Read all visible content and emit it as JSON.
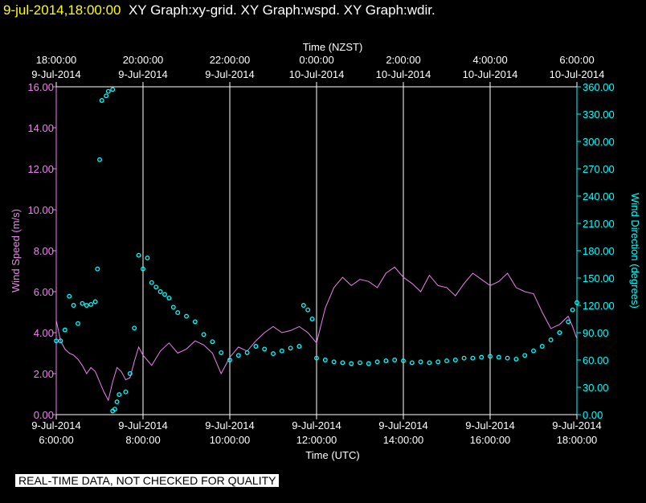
{
  "header": {
    "timestamp": "9-jul-2014,18:00:00",
    "graph_titles": "XY Graph:xy-grid.  XY Graph:wspd.  XY Graph:wdir."
  },
  "footer": {
    "qc_note": "REAL-TIME DATA, NOT CHECKED FOR QUALITY"
  },
  "colors": {
    "speed": "#ee82ee",
    "direction": "#00ffff",
    "grid": "#ffffff",
    "background": "#000000",
    "timestamp": "#ffff00"
  },
  "chart_data": {
    "type": "line",
    "top_axis": {
      "label": "Time (NZST)",
      "ticks": [
        {
          "time": "18:00:00",
          "date": "9-Jul-2014"
        },
        {
          "time": "20:00:00",
          "date": "9-Jul-2014"
        },
        {
          "time": "22:00:00",
          "date": "9-Jul-2014"
        },
        {
          "time": "0:00:00",
          "date": "10-Jul-2014"
        },
        {
          "time": "2:00:00",
          "date": "10-Jul-2014"
        },
        {
          "time": "4:00:00",
          "date": "10-Jul-2014"
        },
        {
          "time": "6:00:00",
          "date": "10-Jul-2014"
        }
      ]
    },
    "bottom_axis": {
      "label": "Time (UTC)",
      "range_hours_utc": [
        6,
        18
      ],
      "ticks": [
        {
          "date": "9-Jul-2014",
          "time": "6:00:00"
        },
        {
          "date": "9-Jul-2014",
          "time": "8:00:00"
        },
        {
          "date": "9-Jul-2014",
          "time": "10:00:00"
        },
        {
          "date": "9-Jul-2014",
          "time": "12:00:00"
        },
        {
          "date": "9-Jul-2014",
          "time": "14:00:00"
        },
        {
          "date": "9-Jul-2014",
          "time": "16:00:00"
        },
        {
          "date": "9-Jul-2014",
          "time": "18:00:00"
        }
      ]
    },
    "left_axis": {
      "label": "Wind Speed (m/s)",
      "range": [
        0,
        16
      ],
      "ticks": [
        "0.00",
        "2.00",
        "4.00",
        "6.00",
        "8.00",
        "10.00",
        "12.00",
        "14.00",
        "16.00"
      ]
    },
    "right_axis": {
      "label": "Wind Direction (degrees)",
      "range": [
        0,
        360
      ],
      "ticks": [
        "0.00",
        "30.00",
        "60.00",
        "90.00",
        "120.00",
        "150.00",
        "180.00",
        "210.00",
        "240.00",
        "270.00",
        "300.00",
        "330.00",
        "360.00"
      ]
    },
    "vertical_grid": true,
    "series": [
      {
        "name": "wspd",
        "style": "line",
        "axis": "left",
        "points": [
          [
            6.0,
            4.6
          ],
          [
            6.1,
            3.6
          ],
          [
            6.2,
            3.2
          ],
          [
            6.3,
            3.0
          ],
          [
            6.4,
            2.9
          ],
          [
            6.5,
            2.7
          ],
          [
            6.6,
            2.4
          ],
          [
            6.7,
            2.0
          ],
          [
            6.8,
            2.3
          ],
          [
            6.9,
            2.1
          ],
          [
            7.0,
            1.6
          ],
          [
            7.1,
            1.1
          ],
          [
            7.2,
            0.7
          ],
          [
            7.3,
            1.6
          ],
          [
            7.4,
            2.3
          ],
          [
            7.5,
            2.1
          ],
          [
            7.6,
            1.7
          ],
          [
            7.7,
            1.8
          ],
          [
            7.8,
            2.6
          ],
          [
            7.9,
            3.3
          ],
          [
            8.0,
            2.9
          ],
          [
            8.2,
            2.4
          ],
          [
            8.4,
            3.1
          ],
          [
            8.6,
            3.5
          ],
          [
            8.8,
            3.0
          ],
          [
            9.0,
            3.2
          ],
          [
            9.2,
            3.6
          ],
          [
            9.4,
            3.4
          ],
          [
            9.6,
            3.0
          ],
          [
            9.8,
            2.0
          ],
          [
            10.0,
            2.8
          ],
          [
            10.2,
            3.3
          ],
          [
            10.4,
            3.1
          ],
          [
            10.6,
            3.6
          ],
          [
            10.8,
            4.0
          ],
          [
            11.0,
            4.3
          ],
          [
            11.2,
            4.0
          ],
          [
            11.4,
            4.1
          ],
          [
            11.6,
            4.3
          ],
          [
            11.8,
            4.0
          ],
          [
            12.0,
            3.5
          ],
          [
            12.2,
            5.2
          ],
          [
            12.4,
            6.2
          ],
          [
            12.6,
            6.7
          ],
          [
            12.8,
            6.3
          ],
          [
            13.0,
            6.6
          ],
          [
            13.2,
            6.5
          ],
          [
            13.4,
            6.2
          ],
          [
            13.6,
            6.9
          ],
          [
            13.8,
            7.2
          ],
          [
            14.0,
            6.7
          ],
          [
            14.2,
            6.4
          ],
          [
            14.4,
            6.0
          ],
          [
            14.6,
            6.8
          ],
          [
            14.8,
            6.3
          ],
          [
            15.0,
            6.2
          ],
          [
            15.2,
            5.8
          ],
          [
            15.4,
            6.4
          ],
          [
            15.6,
            6.9
          ],
          [
            15.8,
            6.6
          ],
          [
            16.0,
            6.3
          ],
          [
            16.2,
            6.5
          ],
          [
            16.4,
            6.9
          ],
          [
            16.6,
            6.2
          ],
          [
            16.8,
            6.0
          ],
          [
            17.0,
            5.9
          ],
          [
            17.2,
            5.0
          ],
          [
            17.4,
            4.2
          ],
          [
            17.6,
            4.4
          ],
          [
            17.8,
            4.8
          ],
          [
            17.9,
            4.3
          ],
          [
            18.0,
            3.7
          ]
        ]
      },
      {
        "name": "wdir",
        "style": "dots",
        "axis": "right",
        "points": [
          [
            6.0,
            81
          ],
          [
            6.1,
            81
          ],
          [
            6.2,
            93
          ],
          [
            6.3,
            130
          ],
          [
            6.4,
            120
          ],
          [
            6.5,
            100
          ],
          [
            6.6,
            122
          ],
          [
            6.7,
            120
          ],
          [
            6.8,
            121
          ],
          [
            6.9,
            124
          ],
          [
            6.95,
            160
          ],
          [
            7.0,
            280
          ],
          [
            7.05,
            345
          ],
          [
            7.15,
            350
          ],
          [
            7.2,
            355
          ],
          [
            7.3,
            357
          ],
          [
            7.3,
            4
          ],
          [
            7.35,
            6
          ],
          [
            7.4,
            14
          ],
          [
            7.45,
            22
          ],
          [
            7.6,
            25
          ],
          [
            7.7,
            45
          ],
          [
            7.8,
            95
          ],
          [
            7.9,
            175
          ],
          [
            8.0,
            160
          ],
          [
            8.1,
            172
          ],
          [
            8.2,
            145
          ],
          [
            8.3,
            140
          ],
          [
            8.4,
            135
          ],
          [
            8.5,
            132
          ],
          [
            8.6,
            128
          ],
          [
            8.7,
            118
          ],
          [
            8.8,
            112
          ],
          [
            9.0,
            108
          ],
          [
            9.2,
            102
          ],
          [
            9.4,
            88
          ],
          [
            9.6,
            80
          ],
          [
            9.8,
            68
          ],
          [
            10.0,
            60
          ],
          [
            10.2,
            65
          ],
          [
            10.4,
            68
          ],
          [
            10.6,
            75
          ],
          [
            10.8,
            72
          ],
          [
            11.0,
            67
          ],
          [
            11.2,
            70
          ],
          [
            11.4,
            73
          ],
          [
            11.6,
            75
          ],
          [
            11.7,
            120
          ],
          [
            11.8,
            115
          ],
          [
            11.9,
            105
          ],
          [
            12.0,
            62
          ],
          [
            12.2,
            60
          ],
          [
            12.4,
            58
          ],
          [
            12.6,
            57
          ],
          [
            12.8,
            56
          ],
          [
            13.0,
            57
          ],
          [
            13.2,
            56
          ],
          [
            13.4,
            58
          ],
          [
            13.6,
            59
          ],
          [
            13.8,
            60
          ],
          [
            14.0,
            59
          ],
          [
            14.2,
            57
          ],
          [
            14.4,
            58
          ],
          [
            14.6,
            57
          ],
          [
            14.8,
            58
          ],
          [
            15.0,
            59
          ],
          [
            15.2,
            60
          ],
          [
            15.4,
            62
          ],
          [
            15.6,
            62
          ],
          [
            15.8,
            63
          ],
          [
            16.0,
            64
          ],
          [
            16.2,
            63
          ],
          [
            16.4,
            62
          ],
          [
            16.6,
            61
          ],
          [
            16.8,
            65
          ],
          [
            17.0,
            70
          ],
          [
            17.2,
            75
          ],
          [
            17.4,
            82
          ],
          [
            17.6,
            90
          ],
          [
            17.8,
            102
          ],
          [
            17.9,
            115
          ],
          [
            18.0,
            123
          ]
        ]
      }
    ]
  }
}
